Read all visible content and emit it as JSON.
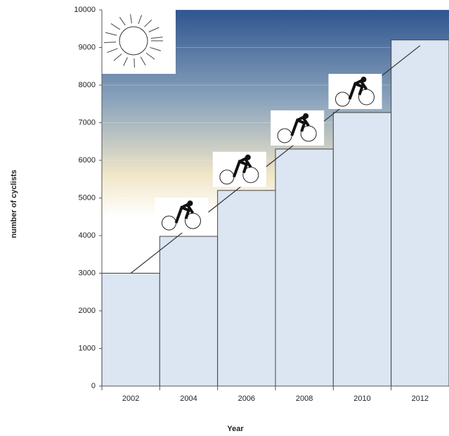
{
  "chart_data": {
    "type": "bar",
    "categories": [
      "2002",
      "2004",
      "2006",
      "2008",
      "2010",
      "2012"
    ],
    "series": [
      {
        "type": "bar",
        "color": "#dce6f2",
        "values": [
          3000,
          3980,
          5200,
          6300,
          7270,
          9200
        ]
      },
      {
        "type": "line",
        "color": "#333333",
        "values": [
          3000,
          4210,
          5420,
          6630,
          7840,
          9050
        ]
      }
    ],
    "xlabel": "Year",
    "ylabel": "number of cyclists",
    "ylim": [
      0,
      10000
    ],
    "yticks": [
      0,
      1000,
      2000,
      3000,
      4000,
      5000,
      6000,
      7000,
      8000,
      9000,
      10000
    ]
  }
}
